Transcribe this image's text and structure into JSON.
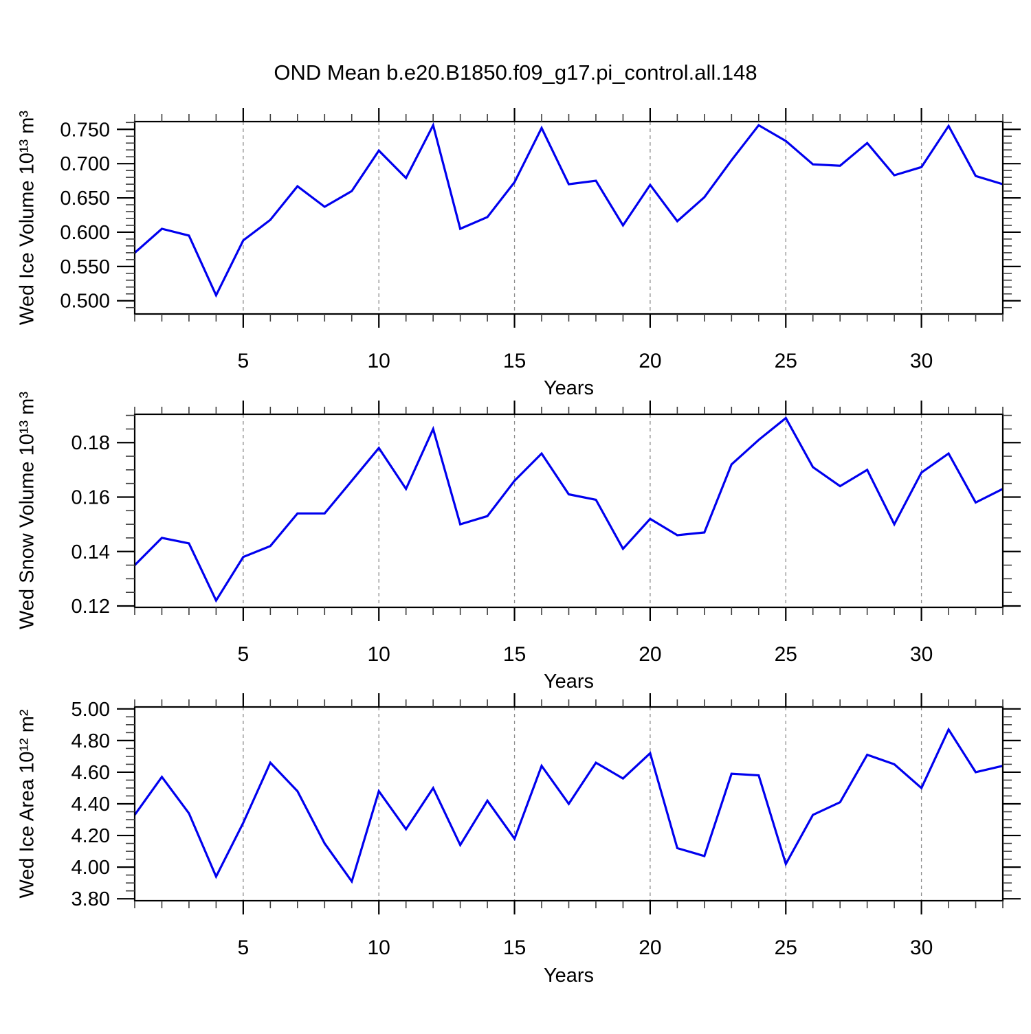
{
  "title": "OND Mean b.e20.B1850.f09_g17.pi_control.all.148",
  "colors": {
    "line": "#0000ee",
    "grid": "#8c8c8c",
    "axis": "#000000",
    "minor_tick": "#3c3c3c",
    "text": "#000000"
  },
  "x_axis": {
    "label": "Years",
    "range": [
      1,
      33
    ],
    "major_ticks": [
      5,
      10,
      15,
      20,
      25,
      30
    ],
    "major_tick_labels": [
      "5",
      "10",
      "15",
      "20",
      "25",
      "30"
    ],
    "minor_step": 1,
    "grid_at_major_ticks": true,
    "grid_style": "dashed"
  },
  "years": [
    1,
    2,
    3,
    4,
    5,
    6,
    7,
    8,
    9,
    10,
    11,
    12,
    13,
    14,
    15,
    16,
    17,
    18,
    19,
    20,
    21,
    22,
    23,
    24,
    25,
    26,
    27,
    28,
    29,
    30,
    31,
    32,
    33
  ],
  "chart_data": [
    {
      "type": "line",
      "ylabel": "Wed Ice Volume 10¹³ m³",
      "xlabel": "Years",
      "ylim": [
        0.4807,
        0.7613
      ],
      "yticks": [
        0.5,
        0.55,
        0.6,
        0.65,
        0.7,
        0.75
      ],
      "ytick_labels": [
        "0.500",
        "0.550",
        "0.600",
        "0.650",
        "0.700",
        "0.750"
      ],
      "y_minor_step": 0.01,
      "series": [
        {
          "name": "Wed Ice Volume",
          "values": [
            0.57,
            0.605,
            0.595,
            0.508,
            0.588,
            0.618,
            0.667,
            0.637,
            0.66,
            0.719,
            0.679,
            0.756,
            0.605,
            0.622,
            0.673,
            0.752,
            0.67,
            0.675,
            0.61,
            0.669,
            0.616,
            0.651,
            0.705,
            0.756,
            0.733,
            0.699,
            0.697,
            0.73,
            0.683,
            0.695,
            0.755,
            0.682,
            0.67
          ]
        }
      ]
    },
    {
      "type": "line",
      "ylabel": "Wed Snow Volume 10¹³ m³",
      "xlabel": "Years",
      "ylim": [
        0.1195,
        0.1904
      ],
      "yticks": [
        0.12,
        0.14,
        0.16,
        0.18
      ],
      "ytick_labels": [
        "0.12",
        "0.14",
        "0.16",
        "0.18"
      ],
      "y_minor_step": 0.005,
      "series": [
        {
          "name": "Wed Snow Volume",
          "values": [
            0.135,
            0.145,
            0.143,
            0.122,
            0.138,
            0.142,
            0.154,
            0.154,
            0.166,
            0.178,
            0.163,
            0.185,
            0.15,
            0.153,
            0.166,
            0.176,
            0.161,
            0.159,
            0.141,
            0.152,
            0.146,
            0.147,
            0.172,
            0.181,
            0.189,
            0.171,
            0.164,
            0.17,
            0.15,
            0.169,
            0.176,
            0.158,
            0.163
          ]
        }
      ]
    },
    {
      "type": "line",
      "ylabel": "Wed Ice Area 10¹² m²",
      "xlabel": "Years",
      "ylim": [
        3.7878,
        5.0122
      ],
      "yticks": [
        3.8,
        4.0,
        4.2,
        4.4,
        4.6,
        4.8,
        5.0
      ],
      "ytick_labels": [
        "3.80",
        "4.00",
        "4.20",
        "4.40",
        "4.60",
        "4.80",
        "5.00"
      ],
      "y_minor_step": 0.05,
      "series": [
        {
          "name": "Wed Ice Area",
          "values": [
            4.33,
            4.57,
            4.34,
            3.94,
            4.28,
            4.66,
            4.48,
            4.15,
            3.91,
            4.48,
            4.24,
            4.5,
            4.14,
            4.42,
            4.18,
            4.64,
            4.4,
            4.66,
            4.56,
            4.72,
            4.12,
            4.07,
            4.59,
            4.58,
            4.02,
            4.33,
            4.41,
            4.71,
            4.65,
            4.5,
            4.87,
            4.6,
            4.64
          ]
        }
      ]
    }
  ]
}
